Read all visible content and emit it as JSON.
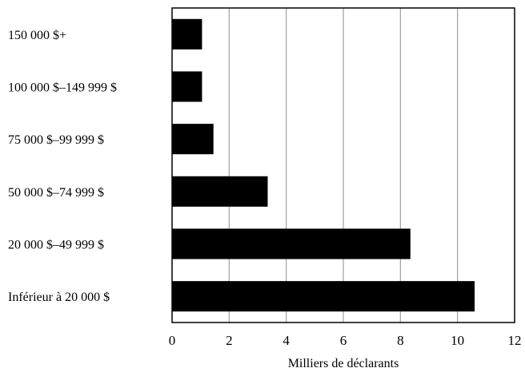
{
  "chart_data": {
    "type": "bar",
    "orientation": "horizontal",
    "categories": [
      "150 000 $+",
      "100 000 $–149 999 $",
      "75 000 $–99 999 $",
      "50 000 $–74 999 $",
      "20 000 $–49 999 $",
      "Inférieur à 20 000 $"
    ],
    "values": [
      1.05,
      1.05,
      1.45,
      3.35,
      8.35,
      10.6
    ],
    "title": "",
    "xlabel": "Milliers de déclarants",
    "ylabel": "",
    "xlim": [
      0,
      12
    ],
    "xticks": [
      "0",
      "2",
      "4",
      "6",
      "8",
      "10",
      "12"
    ],
    "grid": "vertical",
    "legend": "none",
    "bar_color": "#000000",
    "grid_color": "#a0a0a0"
  }
}
